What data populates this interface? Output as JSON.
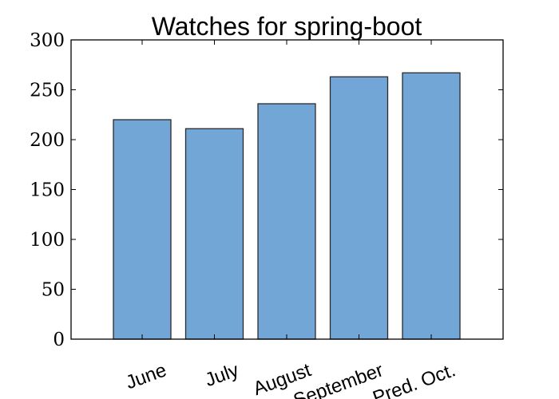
{
  "chart_data": {
    "type": "bar",
    "title": "Watches for spring-boot",
    "categories": [
      "June",
      "July",
      "August",
      "September",
      "Pred. Oct."
    ],
    "values": [
      220,
      211,
      236,
      263,
      267
    ],
    "xlabel": "",
    "ylabel": "",
    "ylim": [
      0,
      300
    ],
    "yticks": [
      "0",
      "50",
      "100",
      "150",
      "200",
      "250",
      "300"
    ],
    "bar_color": "#72a6d6",
    "grid": false
  }
}
